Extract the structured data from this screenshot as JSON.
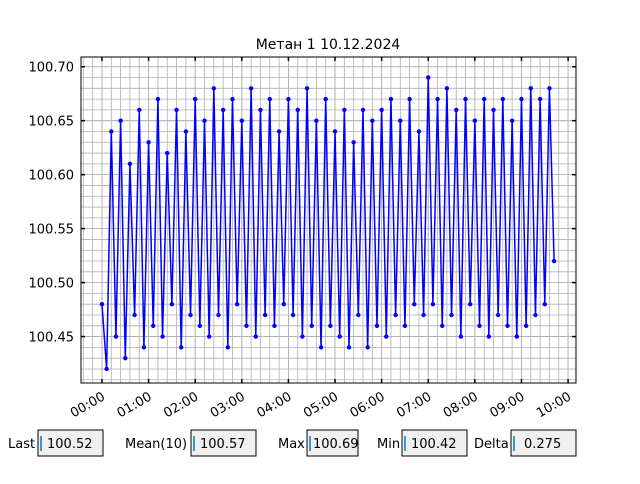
{
  "chart_data": {
    "type": "line",
    "title": "Метан 1 10.12.2024",
    "color": "#0000ff",
    "grid": true,
    "minor_divisions": 5,
    "x": [
      0.0,
      0.1,
      0.2,
      0.3,
      0.4,
      0.5,
      0.6,
      0.7,
      0.8,
      0.9,
      1.0,
      1.1,
      1.2,
      1.3,
      1.4,
      1.5,
      1.6,
      1.7,
      1.8,
      1.9,
      2.0,
      2.1,
      2.2,
      2.3,
      2.4,
      2.5,
      2.6,
      2.7,
      2.8,
      2.9,
      3.0,
      3.1,
      3.2,
      3.3,
      3.4,
      3.5,
      3.6,
      3.7,
      3.8,
      3.9,
      4.0,
      4.1,
      4.2,
      4.3,
      4.4,
      4.5,
      4.6,
      4.7,
      4.8,
      4.9,
      5.0,
      5.1,
      5.2,
      5.3,
      5.4,
      5.5,
      5.6,
      5.7,
      5.8,
      5.9,
      6.0,
      6.1,
      6.2,
      6.3,
      6.4,
      6.5,
      6.6,
      6.7,
      6.8,
      6.9,
      7.0,
      7.1,
      7.2,
      7.3,
      7.4,
      7.5,
      7.6,
      7.7,
      7.8,
      7.9,
      8.0,
      8.1,
      8.2,
      8.3,
      8.4,
      8.5,
      8.6,
      8.7,
      8.8,
      8.9,
      9.0,
      9.1,
      9.2,
      9.3,
      9.4,
      9.5,
      9.6,
      9.7
    ],
    "values": [
      100.48,
      100.42,
      100.64,
      100.45,
      100.65,
      100.43,
      100.61,
      100.47,
      100.66,
      100.44,
      100.63,
      100.46,
      100.67,
      100.45,
      100.62,
      100.48,
      100.66,
      100.44,
      100.64,
      100.47,
      100.67,
      100.46,
      100.65,
      100.45,
      100.68,
      100.47,
      100.66,
      100.44,
      100.67,
      100.48,
      100.65,
      100.46,
      100.68,
      100.45,
      100.66,
      100.47,
      100.67,
      100.46,
      100.64,
      100.48,
      100.67,
      100.47,
      100.66,
      100.45,
      100.68,
      100.46,
      100.65,
      100.44,
      100.67,
      100.46,
      100.64,
      100.45,
      100.66,
      100.44,
      100.63,
      100.47,
      100.66,
      100.44,
      100.65,
      100.46,
      100.66,
      100.45,
      100.67,
      100.47,
      100.65,
      100.46,
      100.67,
      100.48,
      100.64,
      100.47,
      100.69,
      100.48,
      100.67,
      100.46,
      100.68,
      100.47,
      100.66,
      100.45,
      100.67,
      100.48,
      100.65,
      100.46,
      100.67,
      100.45,
      100.66,
      100.47,
      100.67,
      100.46,
      100.65,
      100.45,
      100.67,
      100.46,
      100.68,
      100.47,
      100.67,
      100.48,
      100.68,
      100.52
    ],
    "xlim": [
      -0.45,
      10.17
    ],
    "ylim": [
      100.407,
      100.709
    ],
    "xticks": [
      {
        "value": 0,
        "label": "00:00"
      },
      {
        "value": 1,
        "label": "01:00"
      },
      {
        "value": 2,
        "label": "02:00"
      },
      {
        "value": 3,
        "label": "03:00"
      },
      {
        "value": 4,
        "label": "04:00"
      },
      {
        "value": 5,
        "label": "05:00"
      },
      {
        "value": 6,
        "label": "06:00"
      },
      {
        "value": 7,
        "label": "07:00"
      },
      {
        "value": 8,
        "label": "08:00"
      },
      {
        "value": 9,
        "label": "09:00"
      },
      {
        "value": 10,
        "label": "10:00"
      }
    ],
    "yticks": [
      100.45,
      {
        "value": 100.5,
        "label": "100.50"
      },
      100.55,
      {
        "value": 100.6,
        "label": "100.60"
      },
      100.65,
      {
        "value": 100.7,
        "label": "100.70"
      }
    ]
  },
  "stats": [
    {
      "label": "Last",
      "value": 100.52
    },
    {
      "label": "Mean(10)",
      "value": 100.57
    },
    {
      "label": "Max",
      "value": 100.69
    },
    {
      "label": "Min",
      "value": 100.42
    },
    {
      "label": "Delta",
      "value": 0.275
    }
  ]
}
